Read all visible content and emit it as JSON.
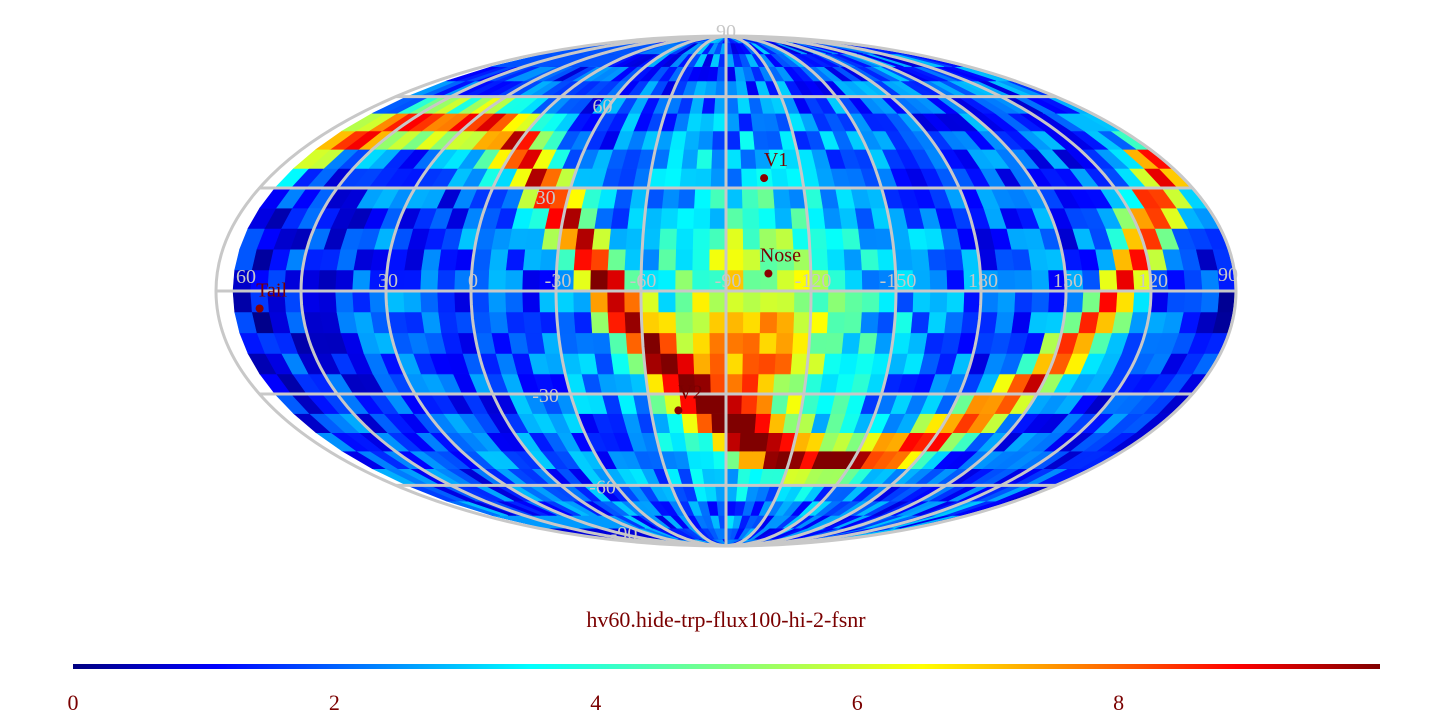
{
  "map": {
    "projection": "mollweide",
    "title": "hv60.hide-trp-flux100-hi-2-fsnr",
    "colormap": "jet",
    "background": "#ffffff",
    "grid_color": "#c8c8c8",
    "marker_color": "#8b0000",
    "grid_lon_step_deg": 30,
    "grid_lat_step_deg": 30,
    "longitude_labels": [
      "60",
      "30",
      "0",
      "-30",
      "-60",
      "-90",
      "-120",
      "-150",
      "180",
      "150",
      "120",
      "90"
    ],
    "latitude_labels": [
      "90",
      "60",
      "30",
      "-30",
      "-60",
      "-90"
    ],
    "markers": [
      {
        "name": "V1",
        "lon": 255,
        "lat": 33
      },
      {
        "name": "Nose",
        "lon": 255,
        "lat": 5
      },
      {
        "name": "V2",
        "lon": 289,
        "lat": -35
      },
      {
        "name": "Tail",
        "lon": 75,
        "lat": -5
      }
    ]
  },
  "colorbar": {
    "range": [
      0,
      10
    ],
    "ticks": [
      "0",
      "2",
      "4",
      "6",
      "8"
    ]
  }
}
